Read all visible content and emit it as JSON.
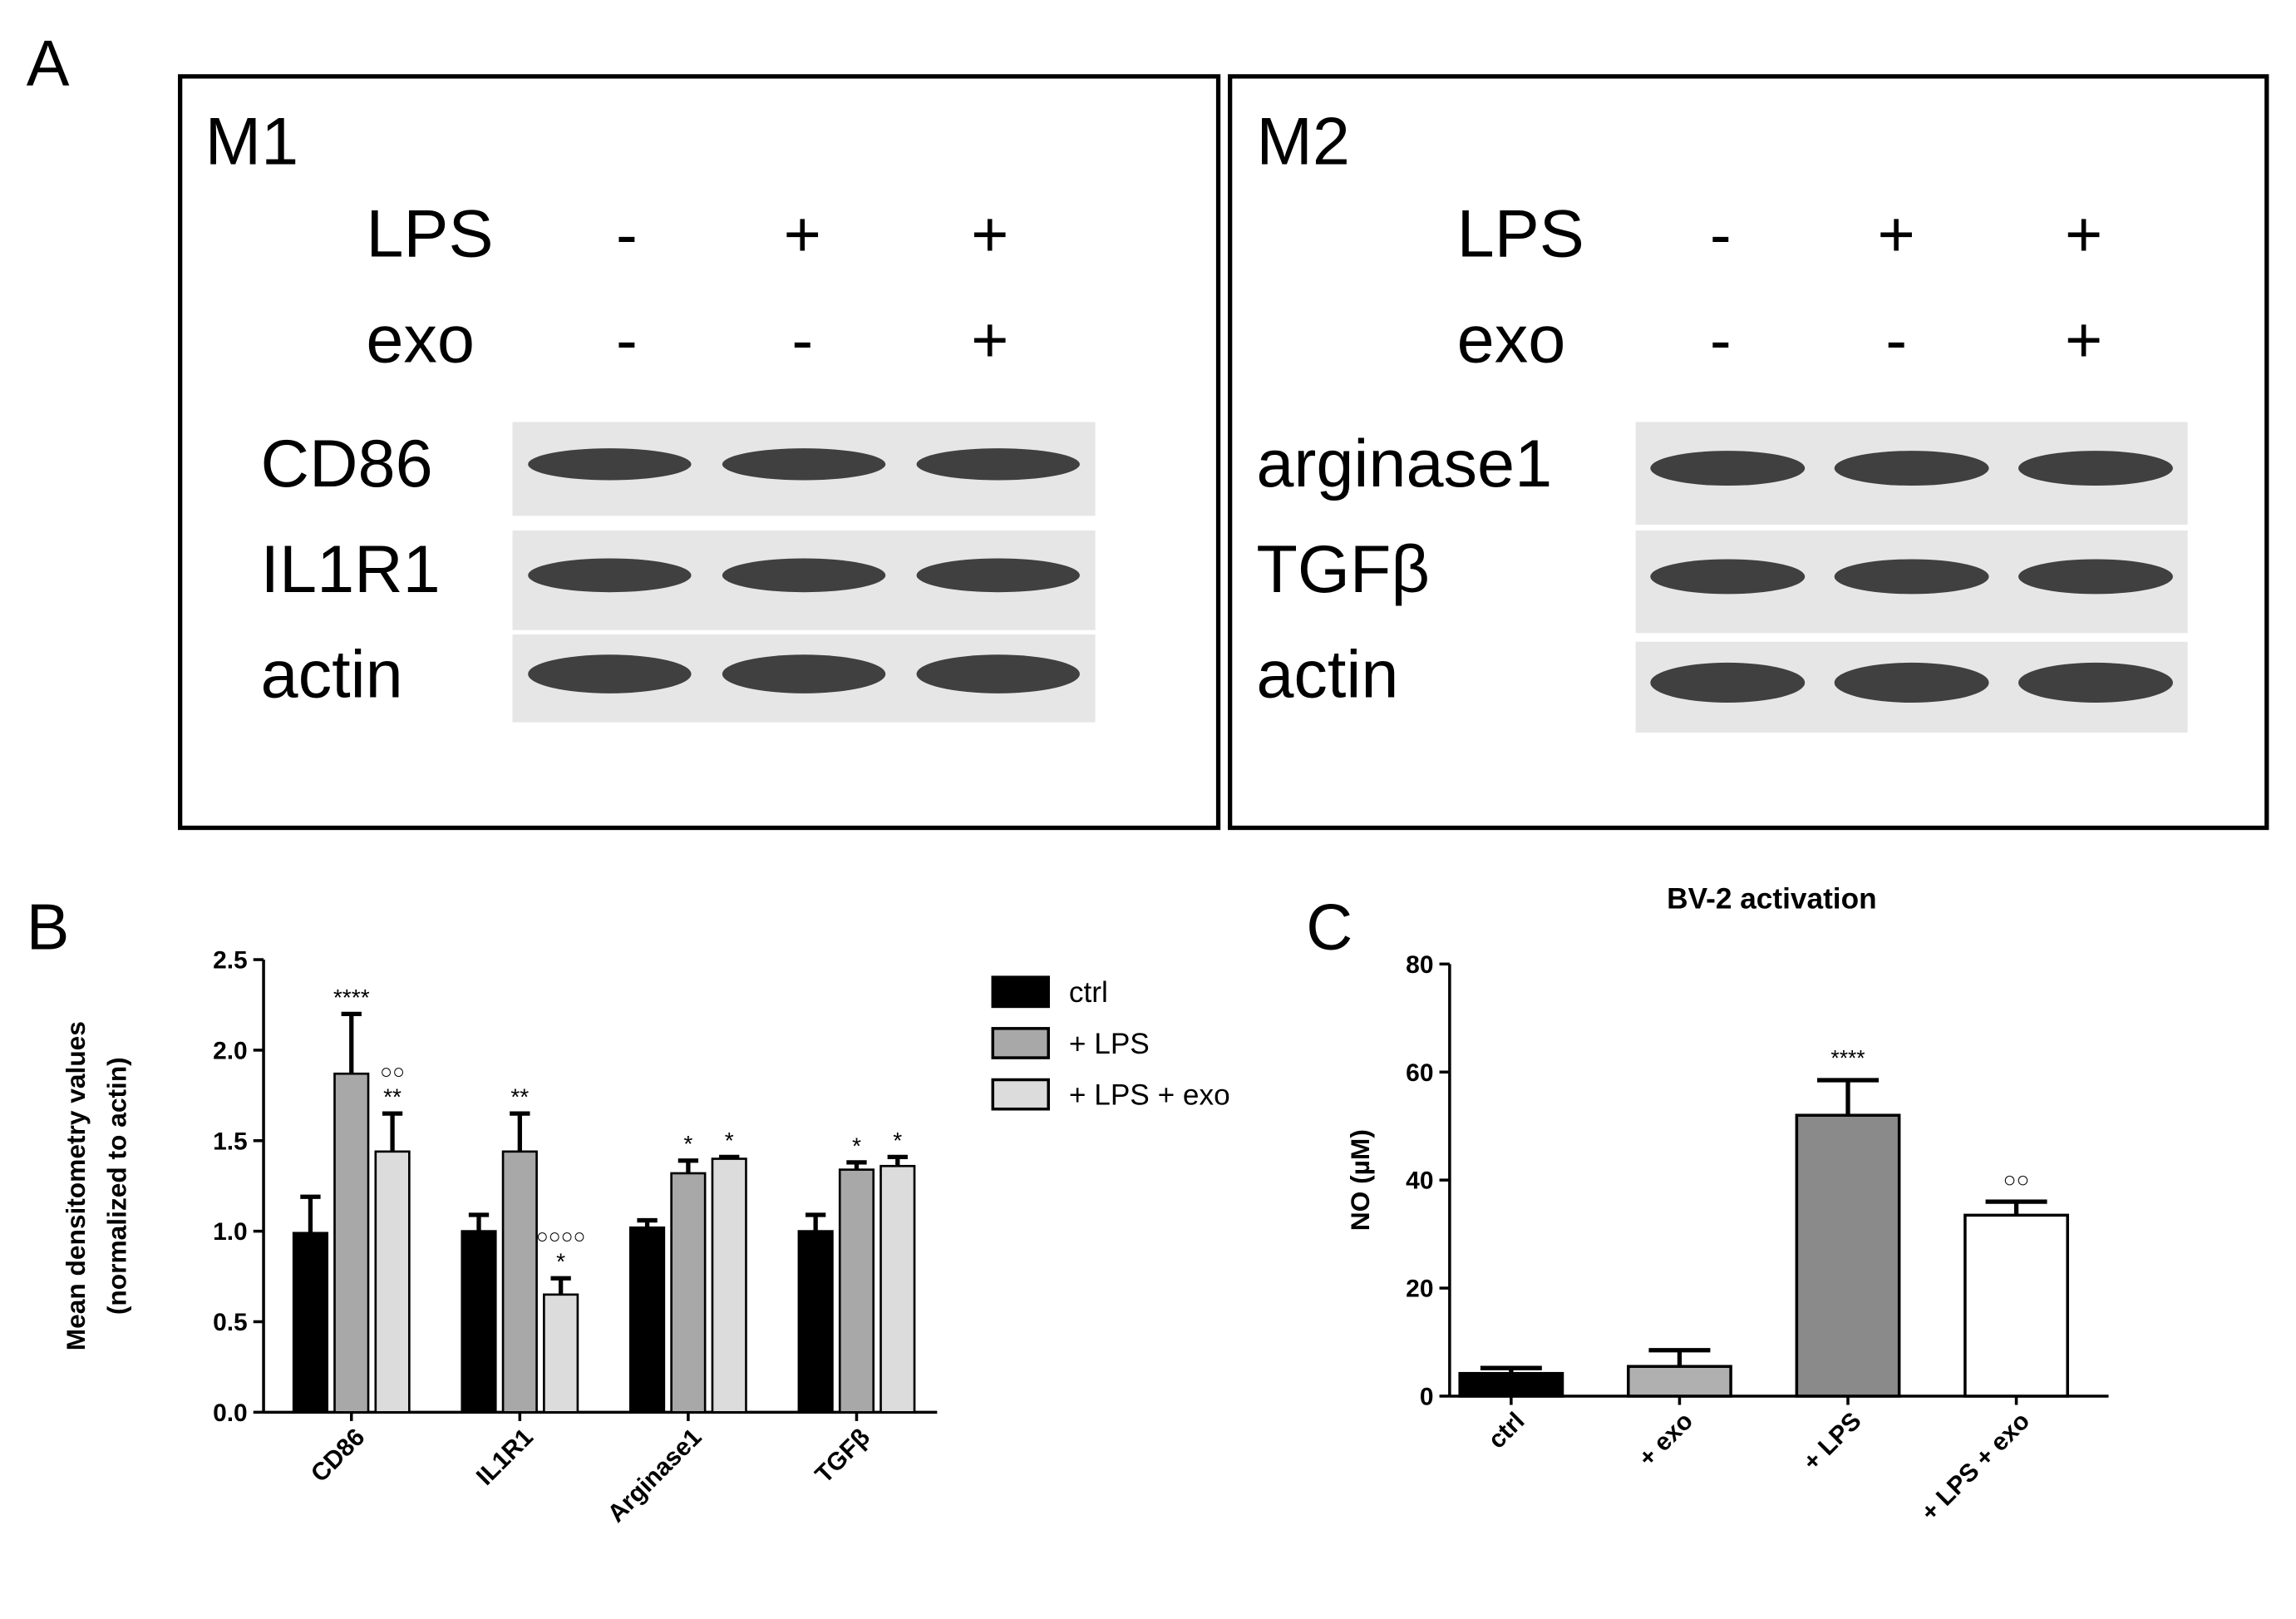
{
  "panel_a": {
    "label": "A",
    "panels": [
      {
        "title": "M1",
        "rows": [
          {
            "label": "LPS",
            "signs": [
              "-",
              "+",
              "+"
            ]
          },
          {
            "label": "exo",
            "signs": [
              "-",
              "-",
              "+"
            ]
          }
        ],
        "blots": [
          "CD86",
          "IL1R1",
          "actin"
        ]
      },
      {
        "title": "M2",
        "rows": [
          {
            "label": "LPS",
            "signs": [
              "-",
              "+",
              "+"
            ]
          },
          {
            "label": "exo",
            "signs": [
              "-",
              "-",
              "+"
            ]
          }
        ],
        "blots": [
          "arginase1",
          "TGFβ",
          "actin"
        ]
      }
    ]
  },
  "chart_data": [
    {
      "type": "bar",
      "panel_label": "B",
      "ylabel": [
        "Mean densitometry values",
        "(normalized to actin)"
      ],
      "categories": [
        "CD86",
        "IL1R1",
        "Arginase1",
        "TGFβ"
      ],
      "series": [
        {
          "name": "ctrl",
          "color": "#000000",
          "values": [
            0.99,
            1.0,
            1.02,
            1.0
          ],
          "errors": [
            0.2,
            0.09,
            0.04,
            0.09
          ],
          "annotations": [
            null,
            null,
            null,
            null
          ],
          "annotations_upper": [
            null,
            null,
            null,
            null
          ]
        },
        {
          "name": "+ LPS",
          "color": "#a8a8a8",
          "values": [
            1.87,
            1.44,
            1.32,
            1.34
          ],
          "errors": [
            0.33,
            0.21,
            0.07,
            0.04
          ],
          "annotations": [
            "****",
            "**",
            "*",
            "*"
          ],
          "annotations_upper": [
            null,
            null,
            null,
            null
          ]
        },
        {
          "name": "+ LPS + exo",
          "color": "#dcdcdc",
          "values": [
            1.44,
            0.65,
            1.4,
            1.36
          ],
          "errors": [
            0.21,
            0.09,
            0.01,
            0.05
          ],
          "annotations": [
            "**",
            "*",
            "*",
            "*"
          ],
          "annotations_upper": [
            "○○",
            "○○○○",
            null,
            null
          ]
        }
      ],
      "ylim": [
        0,
        2.5
      ],
      "yticks": [
        {
          "value": 0,
          "label": "0.0"
        },
        0.5,
        {
          "value": 1,
          "label": "1.0"
        },
        1.5,
        {
          "value": 2,
          "label": "2.0"
        },
        2.5
      ],
      "legend": "right"
    },
    {
      "type": "bar",
      "panel_label": "C",
      "title": "BV-2 activation",
      "ylabel": [
        "NO (µM)"
      ],
      "categories": [
        "ctrl",
        "+ exo",
        "+ LPS",
        "+ LPS + exo"
      ],
      "values": [
        4.2,
        5.5,
        52,
        33.5
      ],
      "errors": [
        1,
        3,
        6.5,
        2.5
      ],
      "colors": [
        "#000000",
        "#b0b0b0",
        "#8a8a8a",
        "#ffffff"
      ],
      "annotations": [
        null,
        null,
        "****",
        "○○"
      ],
      "ylim": [
        0,
        80
      ],
      "yticks": [
        0,
        20,
        40,
        60,
        80
      ]
    }
  ]
}
